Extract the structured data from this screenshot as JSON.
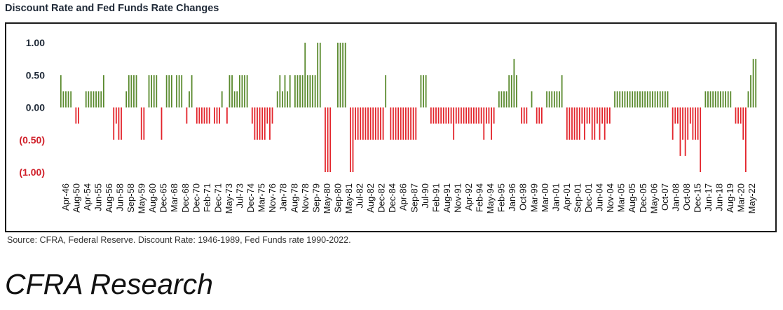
{
  "title": "Discount Rate and Fed Funds Rate Changes",
  "source": "Source: CFRA, Federal Reserve. Discount Rate: 1946-1989, Fed Funds rate 1990-2022.",
  "brand": "CFRA Research",
  "colors": {
    "positive": "#5a8a2e",
    "negative": "#e3242b",
    "negative_tick": "#d0202a",
    "text": "#1f2937"
  },
  "chart_data": {
    "type": "bar",
    "title": "Discount Rate and Fed Funds Rate Changes",
    "ylim": [
      -1.0,
      1.0
    ],
    "yticks": [
      {
        "value": 1.0,
        "label": "1.00"
      },
      {
        "value": 0.5,
        "label": "0.50"
      },
      {
        "value": 0.0,
        "label": "0.00"
      },
      {
        "value": -0.5,
        "label": "(0.50)"
      },
      {
        "value": -1.0,
        "label": "(1.00)"
      }
    ],
    "x_labels": [
      "Apr-46",
      "Aug-50",
      "Apr-54",
      "Jun-55",
      "Aug-56",
      "Jun-58",
      "Sep-58",
      "May-59",
      "Aug-60",
      "Dec-65",
      "Mar-68",
      "Dec-68",
      "Dec-70",
      "Feb-71",
      "Dec-71",
      "May-73",
      "Jul-73",
      "Dec-74",
      "Mar-75",
      "Nov-76",
      "Jan-78",
      "Aug-78",
      "Nov-78",
      "Sep-79",
      "May-80",
      "Sep-80",
      "May-81",
      "Jul-82",
      "Aug-82",
      "Dec-82",
      "Dec-84",
      "Apr-86",
      "Sep-87",
      "Jul-90",
      "Feb-91",
      "Aug-91",
      "Nov-91",
      "Apr-92",
      "Feb-94",
      "May-94",
      "Feb-95",
      "Jan-96",
      "Oct-98",
      "Mar-99",
      "Mar-00",
      "Jan-01",
      "Apr-01",
      "Sep-01",
      "Dec-01",
      "Jun-04",
      "Nov-04",
      "Mar-05",
      "Aug-05",
      "Dec-05",
      "May-06",
      "Oct-07",
      "Jan-08",
      "Oct-08",
      "Dec-15",
      "Jun-17",
      "Jun-18",
      "Aug-19",
      "Mar-20",
      "May-22"
    ],
    "values": [
      0.5,
      0.25,
      0.25,
      0.25,
      0.25,
      0.0,
      -0.25,
      -0.25,
      0.0,
      0.0,
      0.25,
      0.25,
      0.25,
      0.25,
      0.25,
      0.25,
      0.25,
      0.5,
      0.0,
      0.0,
      0.0,
      -0.5,
      -0.25,
      -0.5,
      -0.5,
      0.0,
      0.25,
      0.5,
      0.5,
      0.5,
      0.5,
      0.0,
      -0.5,
      -0.5,
      0.0,
      0.5,
      0.5,
      0.5,
      0.5,
      0.0,
      -0.5,
      0.0,
      0.5,
      0.5,
      0.5,
      0.0,
      0.5,
      0.5,
      0.5,
      0.0,
      -0.25,
      0.25,
      0.5,
      0.0,
      -0.25,
      -0.25,
      -0.25,
      -0.25,
      -0.25,
      -0.25,
      0.0,
      -0.25,
      -0.25,
      -0.25,
      0.25,
      0.0,
      -0.25,
      0.5,
      0.5,
      0.25,
      0.25,
      0.5,
      0.5,
      0.5,
      0.5,
      0.0,
      -0.25,
      -0.5,
      -0.5,
      -0.5,
      -0.5,
      -0.5,
      -0.25,
      -0.5,
      -0.25,
      0.0,
      0.25,
      0.5,
      0.25,
      0.5,
      0.25,
      0.5,
      0.0,
      0.5,
      0.5,
      0.5,
      0.5,
      1.0,
      0.5,
      0.5,
      0.5,
      0.5,
      1.0,
      1.0,
      0.0,
      -1.0,
      -1.0,
      -1.0,
      0.0,
      0.0,
      1.0,
      1.0,
      1.0,
      1.0,
      0.0,
      -1.0,
      -1.0,
      -0.5,
      -0.5,
      -0.5,
      -0.5,
      -0.5,
      -0.5,
      -0.5,
      -0.5,
      -0.5,
      -0.5,
      -0.5,
      -0.5,
      0.5,
      0.0,
      -0.5,
      -0.5,
      -0.5,
      -0.5,
      -0.5,
      -0.5,
      -0.5,
      -0.5,
      -0.5,
      -0.5,
      -0.5,
      0.0,
      0.5,
      0.5,
      0.5,
      0.0,
      -0.25,
      -0.25,
      -0.25,
      -0.25,
      -0.25,
      -0.25,
      -0.25,
      -0.25,
      -0.25,
      -0.5,
      -0.25,
      -0.25,
      -0.25,
      -0.25,
      -0.25,
      -0.25,
      -0.25,
      -0.25,
      -0.25,
      -0.25,
      -0.25,
      -0.5,
      -0.25,
      -0.25,
      -0.5,
      -0.25,
      0.0,
      0.25,
      0.25,
      0.25,
      0.25,
      0.5,
      0.5,
      0.75,
      0.5,
      0.0,
      -0.25,
      -0.25,
      -0.25,
      0.0,
      0.25,
      0.0,
      -0.25,
      -0.25,
      -0.25,
      0.0,
      0.25,
      0.25,
      0.25,
      0.25,
      0.25,
      0.25,
      0.5,
      0.0,
      -0.5,
      -0.5,
      -0.5,
      -0.5,
      -0.5,
      -0.5,
      -0.25,
      -0.5,
      -0.25,
      -0.25,
      -0.5,
      -0.5,
      -0.25,
      -0.5,
      -0.25,
      -0.5,
      -0.25,
      -0.25,
      0.0,
      0.25,
      0.25,
      0.25,
      0.25,
      0.25,
      0.25,
      0.25,
      0.25,
      0.25,
      0.25,
      0.25,
      0.25,
      0.25,
      0.25,
      0.25,
      0.25,
      0.25,
      0.25,
      0.25,
      0.25,
      0.25,
      0.25,
      0.0,
      -0.5,
      -0.25,
      -0.25,
      -0.75,
      -0.5,
      -0.75,
      -0.5,
      -0.25,
      -0.5,
      -0.5,
      -0.5,
      -1.0,
      0.0,
      0.25,
      0.25,
      0.25,
      0.25,
      0.25,
      0.25,
      0.25,
      0.25,
      0.25,
      0.25,
      0.25,
      0.0,
      -0.25,
      -0.25,
      -0.25,
      -0.5,
      -1.0,
      0.25,
      0.5,
      0.75,
      0.75
    ],
    "xlabel": "",
    "ylabel": "",
    "grid": false,
    "legend": "none"
  }
}
